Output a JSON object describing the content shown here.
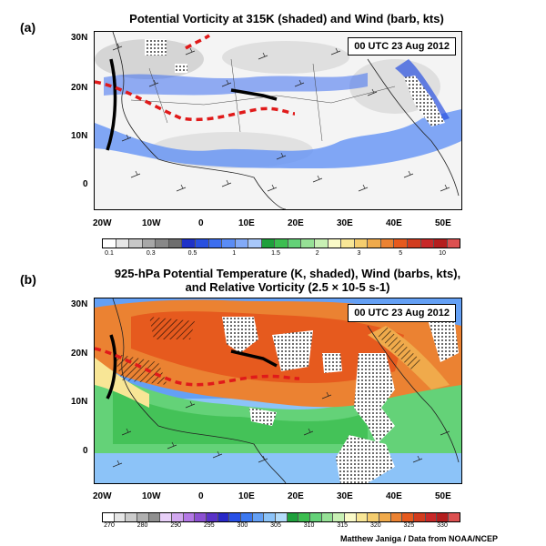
{
  "panel_a": {
    "letter": "(a)",
    "title": "Potential Vorticity at 315K (shaded) and Wind (barb, kts)",
    "timestamp": "00 UTC 23 Aug 2012",
    "lat_labels": [
      "30N",
      "20N",
      "10N",
      "0"
    ],
    "lon_labels": [
      "20W",
      "10W",
      "0",
      "10E",
      "20E",
      "30E",
      "40E",
      "50E"
    ],
    "colorbar": {
      "colors": [
        "#ffffff",
        "#e6e6e6",
        "#c8c8c8",
        "#a8a8a8",
        "#888888",
        "#6e6e6e",
        "#1e32c8",
        "#2850e0",
        "#3c6ef0",
        "#5a8cf5",
        "#82aaf8",
        "#a8c8fa",
        "#1ea03c",
        "#3cbe50",
        "#64d278",
        "#96e196",
        "#c8f0b4",
        "#fafac8",
        "#f8e696",
        "#f5cd6e",
        "#f0aa4b",
        "#eb8232",
        "#e65a1e",
        "#d23c1e",
        "#c82828",
        "#b41e1e",
        "#dc5050"
      ],
      "labels": [
        "0.1",
        "0.3",
        "0.5",
        "1",
        "1.5",
        "2",
        "3",
        "5",
        "10"
      ]
    }
  },
  "panel_b": {
    "letter": "(b)",
    "title_line1": "925-hPa Potential Temperature (K, shaded), Wind (barbs, kts),",
    "title_line2": "and Relative Vorticity (2.5 × 10-5 s-1)",
    "timestamp": "00 UTC 23 Aug 2012",
    "lat_labels": [
      "30N",
      "20N",
      "10N",
      "0"
    ],
    "lon_labels": [
      "20W",
      "10W",
      "0",
      "10E",
      "20E",
      "30E",
      "40E",
      "50E"
    ],
    "colorbar": {
      "colors": [
        "#ffffff",
        "#e6e6e6",
        "#cccccc",
        "#b0b0b0",
        "#909090",
        "#e8d0f8",
        "#d2a8f0",
        "#b478e6",
        "#8c50d2",
        "#5a32c8",
        "#2828c8",
        "#2850e6",
        "#3c78f0",
        "#64a0f5",
        "#8cc3f8",
        "#b4dcfa",
        "#1ea03c",
        "#3cbe50",
        "#64d278",
        "#96e196",
        "#c8f0b4",
        "#fafac8",
        "#f8e696",
        "#f5cd6e",
        "#f0aa4b",
        "#eb8232",
        "#e65a1e",
        "#d23c1e",
        "#c82828",
        "#b41e1e",
        "#dc5050"
      ],
      "labels": [
        "270",
        "280",
        "290",
        "295",
        "300",
        "305",
        "310",
        "315",
        "320",
        "325",
        "330"
      ]
    }
  },
  "credit": "Matthew Janiga / Data from NOAA/NCEP"
}
